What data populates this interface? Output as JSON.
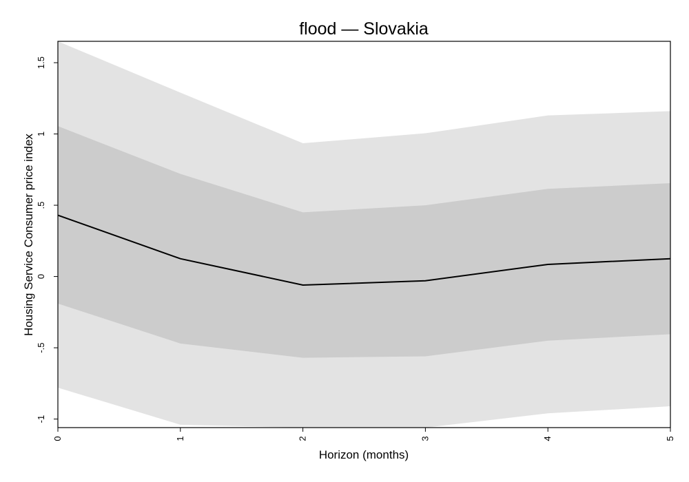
{
  "chart_data": {
    "type": "line",
    "title": "flood — Slovakia",
    "xlabel": "Horizon (months)",
    "ylabel": "Housing Service Consumer price index",
    "x": [
      0,
      1,
      2,
      3,
      4,
      5
    ],
    "x_ticks": [
      "0",
      "1",
      "2",
      "3",
      "4",
      "5"
    ],
    "y_ticks": [
      {
        "value": -1,
        "label": "-1"
      },
      {
        "value": -0.5,
        "label": "-.5"
      },
      {
        "value": 0,
        "label": "0"
      },
      {
        "value": 0.5,
        "label": ".5"
      },
      {
        "value": 1,
        "label": "1"
      },
      {
        "value": 1.5,
        "label": "1.5"
      }
    ],
    "xlim": [
      0,
      5
    ],
    "ylim": [
      -1.06,
      1.65
    ],
    "series": [
      {
        "values": [
          0.43,
          0.125,
          -0.06,
          -0.03,
          0.085,
          0.125
        ]
      }
    ],
    "bands": [
      {
        "level": "outer",
        "lower": [
          -0.78,
          -1.04,
          -1.06,
          -1.06,
          -0.96,
          -0.91
        ],
        "upper": [
          1.65,
          1.29,
          0.935,
          1.005,
          1.13,
          1.16
        ]
      },
      {
        "level": "inner",
        "lower": [
          -0.19,
          -0.47,
          -0.57,
          -0.56,
          -0.45,
          -0.405
        ],
        "upper": [
          1.055,
          0.72,
          0.45,
          0.5,
          0.615,
          0.655
        ]
      }
    ],
    "colors": {
      "outer_band": "#e3e3e3",
      "inner_band": "#cccccc",
      "line": "#000000",
      "frame": "#000000"
    },
    "grid": false,
    "legend": "none"
  }
}
